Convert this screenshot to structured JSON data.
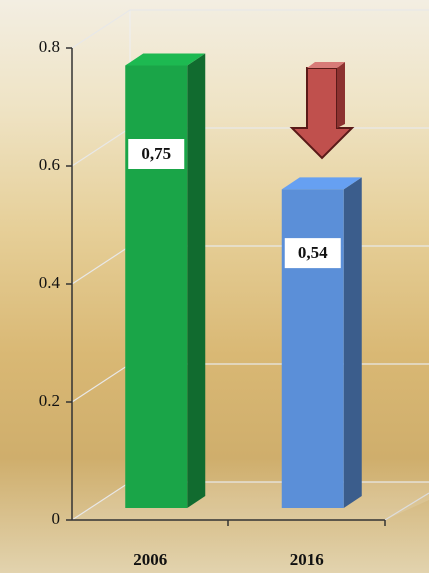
{
  "chart_data": {
    "type": "bar",
    "categories": [
      "2006",
      "2016"
    ],
    "values": [
      0.75,
      0.54
    ],
    "value_labels": [
      "0,75",
      "0,54"
    ],
    "colors": [
      "#1aa548",
      "#5b8fd8"
    ],
    "ylim": [
      0,
      0.8
    ],
    "yticks": [
      0,
      0.2,
      0.4,
      0.6,
      0.8
    ],
    "grid": true
  }
}
